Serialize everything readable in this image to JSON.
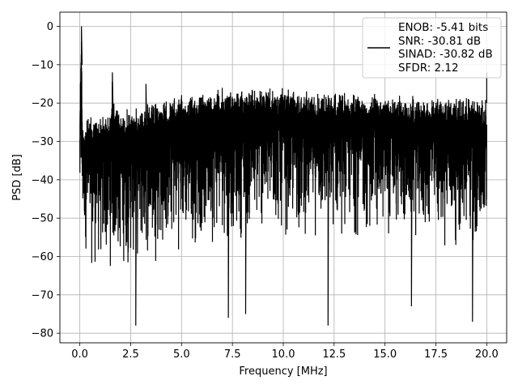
{
  "chart_data": {
    "type": "line",
    "title": "",
    "xlabel": "Frequency [MHz]",
    "ylabel": "PSD [dB]",
    "xlim": [
      -0.98,
      20.98
    ],
    "ylim": [
      -82.5,
      3.7
    ],
    "xticks": [
      0.0,
      2.5,
      5.0,
      7.5,
      10.0,
      12.5,
      15.0,
      17.5,
      20.0
    ],
    "xtick_labels": [
      "0.0",
      "2.5",
      "5.0",
      "7.5",
      "10.0",
      "12.5",
      "15.0",
      "17.5",
      "20.0"
    ],
    "yticks": [
      0,
      -10,
      -20,
      -30,
      -40,
      -50,
      -60,
      -70,
      -80
    ],
    "ytick_labels": [
      "0",
      "−10",
      "−20",
      "−30",
      "−40",
      "−50",
      "−60",
      "−70",
      "−80"
    ],
    "grid": true,
    "legend_position": "top-right",
    "series": [
      {
        "name": "ENOB: -5.41 bits\nSNR: -30.81 dB\nSINAD: -30.82 dB\nSFDR: 2.12",
        "legend_lines": [
          "ENOB: -5.41 bits",
          "SNR: -30.81 dB",
          "SINAD: -30.82 dB",
          "SFDR: 2.12"
        ],
        "color": "#000000",
        "x_range": [
          0,
          20
        ],
        "upper_envelope": [
          [
            0,
            -23
          ],
          [
            0.05,
            -3
          ],
          [
            0.08,
            0
          ],
          [
            0.12,
            -24
          ],
          [
            0.5,
            -23
          ],
          [
            1.0,
            -22.5
          ],
          [
            1.5,
            -22
          ],
          [
            1.6,
            -12
          ],
          [
            1.7,
            -21
          ],
          [
            2.5,
            -21
          ],
          [
            3.2,
            -20
          ],
          [
            3.25,
            -15
          ],
          [
            3.3,
            -20
          ],
          [
            5.0,
            -17.5
          ],
          [
            6.0,
            -17
          ],
          [
            6.8,
            -15.5
          ],
          [
            7.5,
            -15.5
          ],
          [
            10.0,
            -16
          ],
          [
            12.5,
            -16.5
          ],
          [
            15.0,
            -17.5
          ],
          [
            17.5,
            -18
          ],
          [
            20.0,
            -18.5
          ],
          [
            20.0,
            -12
          ]
        ],
        "lower_envelope": [
          [
            0,
            -55
          ],
          [
            0.5,
            -65
          ],
          [
            1.0,
            -66
          ],
          [
            2.5,
            -65
          ],
          [
            5.0,
            -60
          ],
          [
            7.5,
            -57
          ],
          [
            10.0,
            -57
          ],
          [
            12.5,
            -57
          ],
          [
            15.0,
            -57
          ],
          [
            17.5,
            -58
          ],
          [
            20.0,
            -62
          ]
        ],
        "notable_points": [
          [
            0.08,
            0
          ],
          [
            1.6,
            -12
          ],
          [
            2.75,
            -78
          ],
          [
            3.25,
            -15
          ],
          [
            7.3,
            -76
          ],
          [
            8.15,
            -75
          ],
          [
            12.2,
            -78
          ],
          [
            16.3,
            -73
          ],
          [
            19.3,
            -77
          ]
        ]
      }
    ]
  }
}
